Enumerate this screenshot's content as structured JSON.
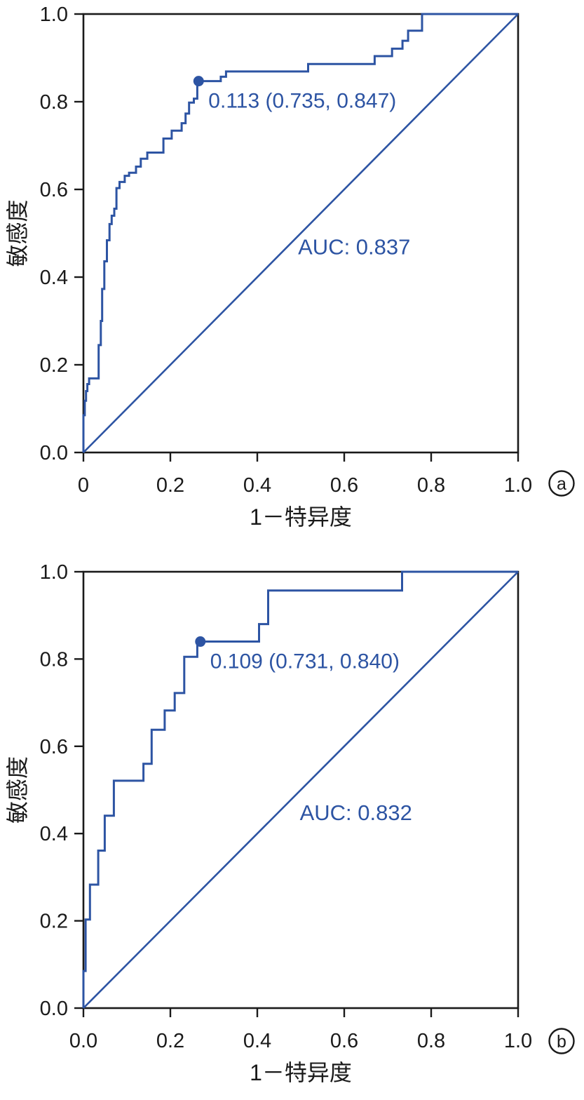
{
  "page": {
    "background": "#ffffff",
    "description": "Two ROC curve panels (a) and (b) with Chinese axis labels"
  },
  "colors": {
    "curve": "#2d54a3",
    "axis": "#1a1a1a",
    "text": "#1a1a1a"
  },
  "chart_data": [
    {
      "type": "line",
      "subtype": "roc_step_curve",
      "panel_label": "a",
      "xlabel": "1－特异度",
      "ylabel": "敏感度",
      "xlim": [
        0,
        1
      ],
      "ylim": [
        0,
        1
      ],
      "grid": false,
      "legend": "none",
      "x_tick_labels": [
        "0",
        "0.2",
        "0.4",
        "0.6",
        "0.8",
        "1.0"
      ],
      "x_tick_values": [
        0,
        0.2,
        0.4,
        0.6,
        0.8,
        1.0
      ],
      "y_tick_labels": [
        "0.0",
        "0.2",
        "0.4",
        "0.6",
        "0.8",
        "1.0"
      ],
      "y_tick_values": [
        0,
        0.2,
        0.4,
        0.6,
        0.8,
        1.0
      ],
      "auc_text": "AUC: 0.837",
      "auc_value": 0.837,
      "auc_pos": [
        0.623,
        0.468
      ],
      "diagonal": [
        [
          0,
          0
        ],
        [
          1,
          1
        ]
      ],
      "cutoff": {
        "label": "0.113 (0.735, 0.847)",
        "threshold": 0.113,
        "specificity": 0.735,
        "sensitivity": 0.847,
        "x": 0.265,
        "y": 0.847
      },
      "roc_points": [
        [
          0,
          0
        ],
        [
          0,
          0.085
        ],
        [
          0.003,
          0.085
        ],
        [
          0.003,
          0.118
        ],
        [
          0.006,
          0.118
        ],
        [
          0.006,
          0.14
        ],
        [
          0.009,
          0.14
        ],
        [
          0.009,
          0.156
        ],
        [
          0.013,
          0.156
        ],
        [
          0.013,
          0.169
        ],
        [
          0.035,
          0.169
        ],
        [
          0.035,
          0.245
        ],
        [
          0.04,
          0.245
        ],
        [
          0.04,
          0.3
        ],
        [
          0.043,
          0.3
        ],
        [
          0.043,
          0.373
        ],
        [
          0.048,
          0.373
        ],
        [
          0.048,
          0.436
        ],
        [
          0.054,
          0.436
        ],
        [
          0.054,
          0.484
        ],
        [
          0.06,
          0.484
        ],
        [
          0.06,
          0.521
        ],
        [
          0.065,
          0.521
        ],
        [
          0.065,
          0.54
        ],
        [
          0.071,
          0.54
        ],
        [
          0.071,
          0.556
        ],
        [
          0.076,
          0.556
        ],
        [
          0.076,
          0.603
        ],
        [
          0.083,
          0.603
        ],
        [
          0.083,
          0.617
        ],
        [
          0.095,
          0.617
        ],
        [
          0.095,
          0.631
        ],
        [
          0.105,
          0.631
        ],
        [
          0.105,
          0.638
        ],
        [
          0.121,
          0.638
        ],
        [
          0.121,
          0.652
        ],
        [
          0.132,
          0.652
        ],
        [
          0.132,
          0.67
        ],
        [
          0.147,
          0.67
        ],
        [
          0.147,
          0.684
        ],
        [
          0.184,
          0.684
        ],
        [
          0.184,
          0.716
        ],
        [
          0.203,
          0.716
        ],
        [
          0.203,
          0.734
        ],
        [
          0.226,
          0.734
        ],
        [
          0.226,
          0.751
        ],
        [
          0.235,
          0.751
        ],
        [
          0.235,
          0.773
        ],
        [
          0.243,
          0.773
        ],
        [
          0.243,
          0.798
        ],
        [
          0.254,
          0.798
        ],
        [
          0.254,
          0.807
        ],
        [
          0.262,
          0.807
        ],
        [
          0.262,
          0.847
        ],
        [
          0.265,
          0.847
        ],
        [
          0.316,
          0.847
        ],
        [
          0.316,
          0.857
        ],
        [
          0.328,
          0.857
        ],
        [
          0.328,
          0.869
        ],
        [
          0.517,
          0.869
        ],
        [
          0.517,
          0.886
        ],
        [
          0.67,
          0.886
        ],
        [
          0.67,
          0.904
        ],
        [
          0.71,
          0.904
        ],
        [
          0.71,
          0.921
        ],
        [
          0.734,
          0.921
        ],
        [
          0.734,
          0.939
        ],
        [
          0.747,
          0.939
        ],
        [
          0.747,
          0.962
        ],
        [
          0.779,
          0.962
        ],
        [
          0.779,
          1
        ],
        [
          1,
          1
        ]
      ]
    },
    {
      "type": "line",
      "subtype": "roc_step_curve",
      "panel_label": "b",
      "xlabel": "1－特异度",
      "ylabel": "敏感度",
      "xlim": [
        0,
        1
      ],
      "ylim": [
        0,
        1
      ],
      "grid": false,
      "legend": "none",
      "x_tick_labels": [
        "0.0",
        "0.2",
        "0.4",
        "0.6",
        "0.8",
        "1.0"
      ],
      "x_tick_values": [
        0,
        0.2,
        0.4,
        0.6,
        0.8,
        1.0
      ],
      "y_tick_labels": [
        "0.0",
        "0.2",
        "0.4",
        "0.6",
        "0.8",
        "1.0"
      ],
      "y_tick_values": [
        0,
        0.2,
        0.4,
        0.6,
        0.8,
        1.0
      ],
      "auc_text": "AUC: 0.832",
      "auc_value": 0.832,
      "auc_pos": [
        0.627,
        0.447
      ],
      "diagonal": [
        [
          0,
          0
        ],
        [
          1,
          1
        ]
      ],
      "cutoff": {
        "label": "0.109 (0.731, 0.840)",
        "threshold": 0.109,
        "specificity": 0.731,
        "sensitivity": 0.84,
        "x": 0.269,
        "y": 0.84
      },
      "roc_points": [
        [
          0,
          0
        ],
        [
          0,
          0.085
        ],
        [
          0.005,
          0.085
        ],
        [
          0.005,
          0.203
        ],
        [
          0.015,
          0.203
        ],
        [
          0.015,
          0.283
        ],
        [
          0.034,
          0.283
        ],
        [
          0.034,
          0.361
        ],
        [
          0.049,
          0.361
        ],
        [
          0.049,
          0.441
        ],
        [
          0.07,
          0.441
        ],
        [
          0.07,
          0.521
        ],
        [
          0.138,
          0.521
        ],
        [
          0.138,
          0.56
        ],
        [
          0.157,
          0.56
        ],
        [
          0.157,
          0.638
        ],
        [
          0.187,
          0.638
        ],
        [
          0.187,
          0.682
        ],
        [
          0.21,
          0.682
        ],
        [
          0.21,
          0.722
        ],
        [
          0.232,
          0.722
        ],
        [
          0.232,
          0.805
        ],
        [
          0.262,
          0.805
        ],
        [
          0.262,
          0.84
        ],
        [
          0.269,
          0.84
        ],
        [
          0.404,
          0.84
        ],
        [
          0.404,
          0.88
        ],
        [
          0.425,
          0.88
        ],
        [
          0.425,
          0.957
        ],
        [
          0.733,
          0.957
        ],
        [
          0.733,
          1
        ],
        [
          1,
          1
        ]
      ]
    }
  ]
}
